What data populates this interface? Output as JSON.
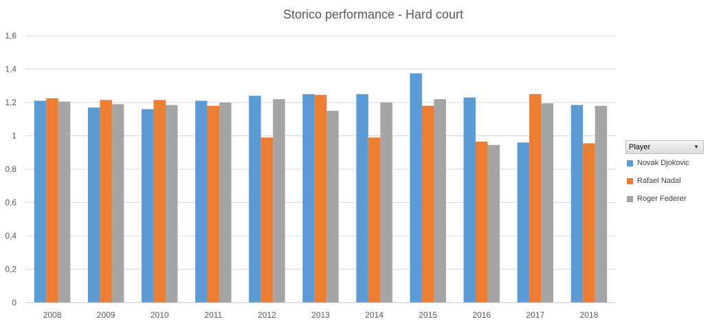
{
  "chart_data": {
    "type": "bar",
    "title": "Storico performance - Hard court",
    "xlabel": "",
    "ylabel": "",
    "categories": [
      "2008",
      "2009",
      "2010",
      "2011",
      "2012",
      "2013",
      "2014",
      "2015",
      "2016",
      "2017",
      "2018"
    ],
    "series": [
      {
        "name": "Novak Djokovic",
        "color": "#5b9bd5",
        "values": [
          1.21,
          1.17,
          1.16,
          1.21,
          1.24,
          1.25,
          1.25,
          1.375,
          1.23,
          0.96,
          1.185
        ]
      },
      {
        "name": "Rafael Nadal",
        "color": "#ed7d31",
        "values": [
          1.225,
          1.215,
          1.215,
          1.18,
          0.99,
          1.245,
          0.99,
          1.18,
          0.965,
          1.25,
          0.955
        ]
      },
      {
        "name": "Roger Federer",
        "color": "#a5a5a5",
        "values": [
          1.205,
          1.19,
          1.185,
          1.2,
          1.22,
          1.15,
          1.2,
          1.22,
          0.945,
          1.195,
          1.18
        ]
      }
    ],
    "ylim": [
      0,
      1.6
    ],
    "yticks": [
      0,
      0.2,
      0.4,
      0.6,
      0.8,
      1,
      1.2,
      1.4,
      1.6
    ],
    "ytick_labels": [
      "0",
      "0,2",
      "0,4",
      "0,6",
      "0,8",
      "1",
      "1,2",
      "1,4",
      "1,6"
    ],
    "grid": true,
    "legend": {
      "title": "Player",
      "placement": "right"
    }
  }
}
